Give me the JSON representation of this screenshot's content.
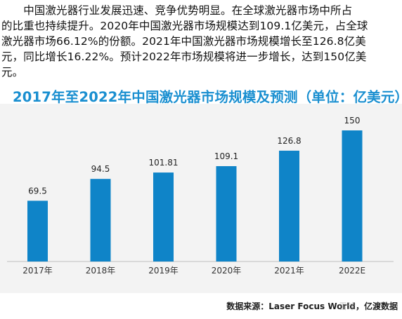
{
  "intro_lines": [
    "　　中国激光器行业发展迅速、竞争优势明显。在全球激光器市场中所占",
    "的比重也持续提升。2020年中国激光器市场规模达到109.1亿美元，占全球",
    "激光器市场66.12%的份额。2021年中国激光器市场规模增长至126.8亿美",
    "元，同比增长16.22%。预计2022年市场规模将进一步增长，达到150亿美",
    "元。"
  ],
  "footer": {
    "source": "数据来源：Laser Focus World，亿渡数据",
    "watermark": "雪球"
  },
  "colors": {
    "bar": "#0f84c8",
    "title": "#1a8fd0",
    "panel": "#f3f3f3",
    "axis": "#bfbfbf"
  },
  "chart_data": {
    "type": "bar",
    "title": "2017年至2022年中国激光器市场规模及预测（单位：亿美元）",
    "xlabel": "",
    "ylabel": "",
    "categories": [
      "2017年",
      "2018年",
      "2019年",
      "2020年",
      "2021年",
      "2022E"
    ],
    "values": [
      69.5,
      94.5,
      101.81,
      109.1,
      126.8,
      150
    ],
    "value_labels": [
      "69.5",
      "94.5",
      "101.81",
      "109.1",
      "126.8",
      "150"
    ],
    "ylim": [
      0,
      150
    ],
    "grid": false,
    "legend": "none"
  }
}
